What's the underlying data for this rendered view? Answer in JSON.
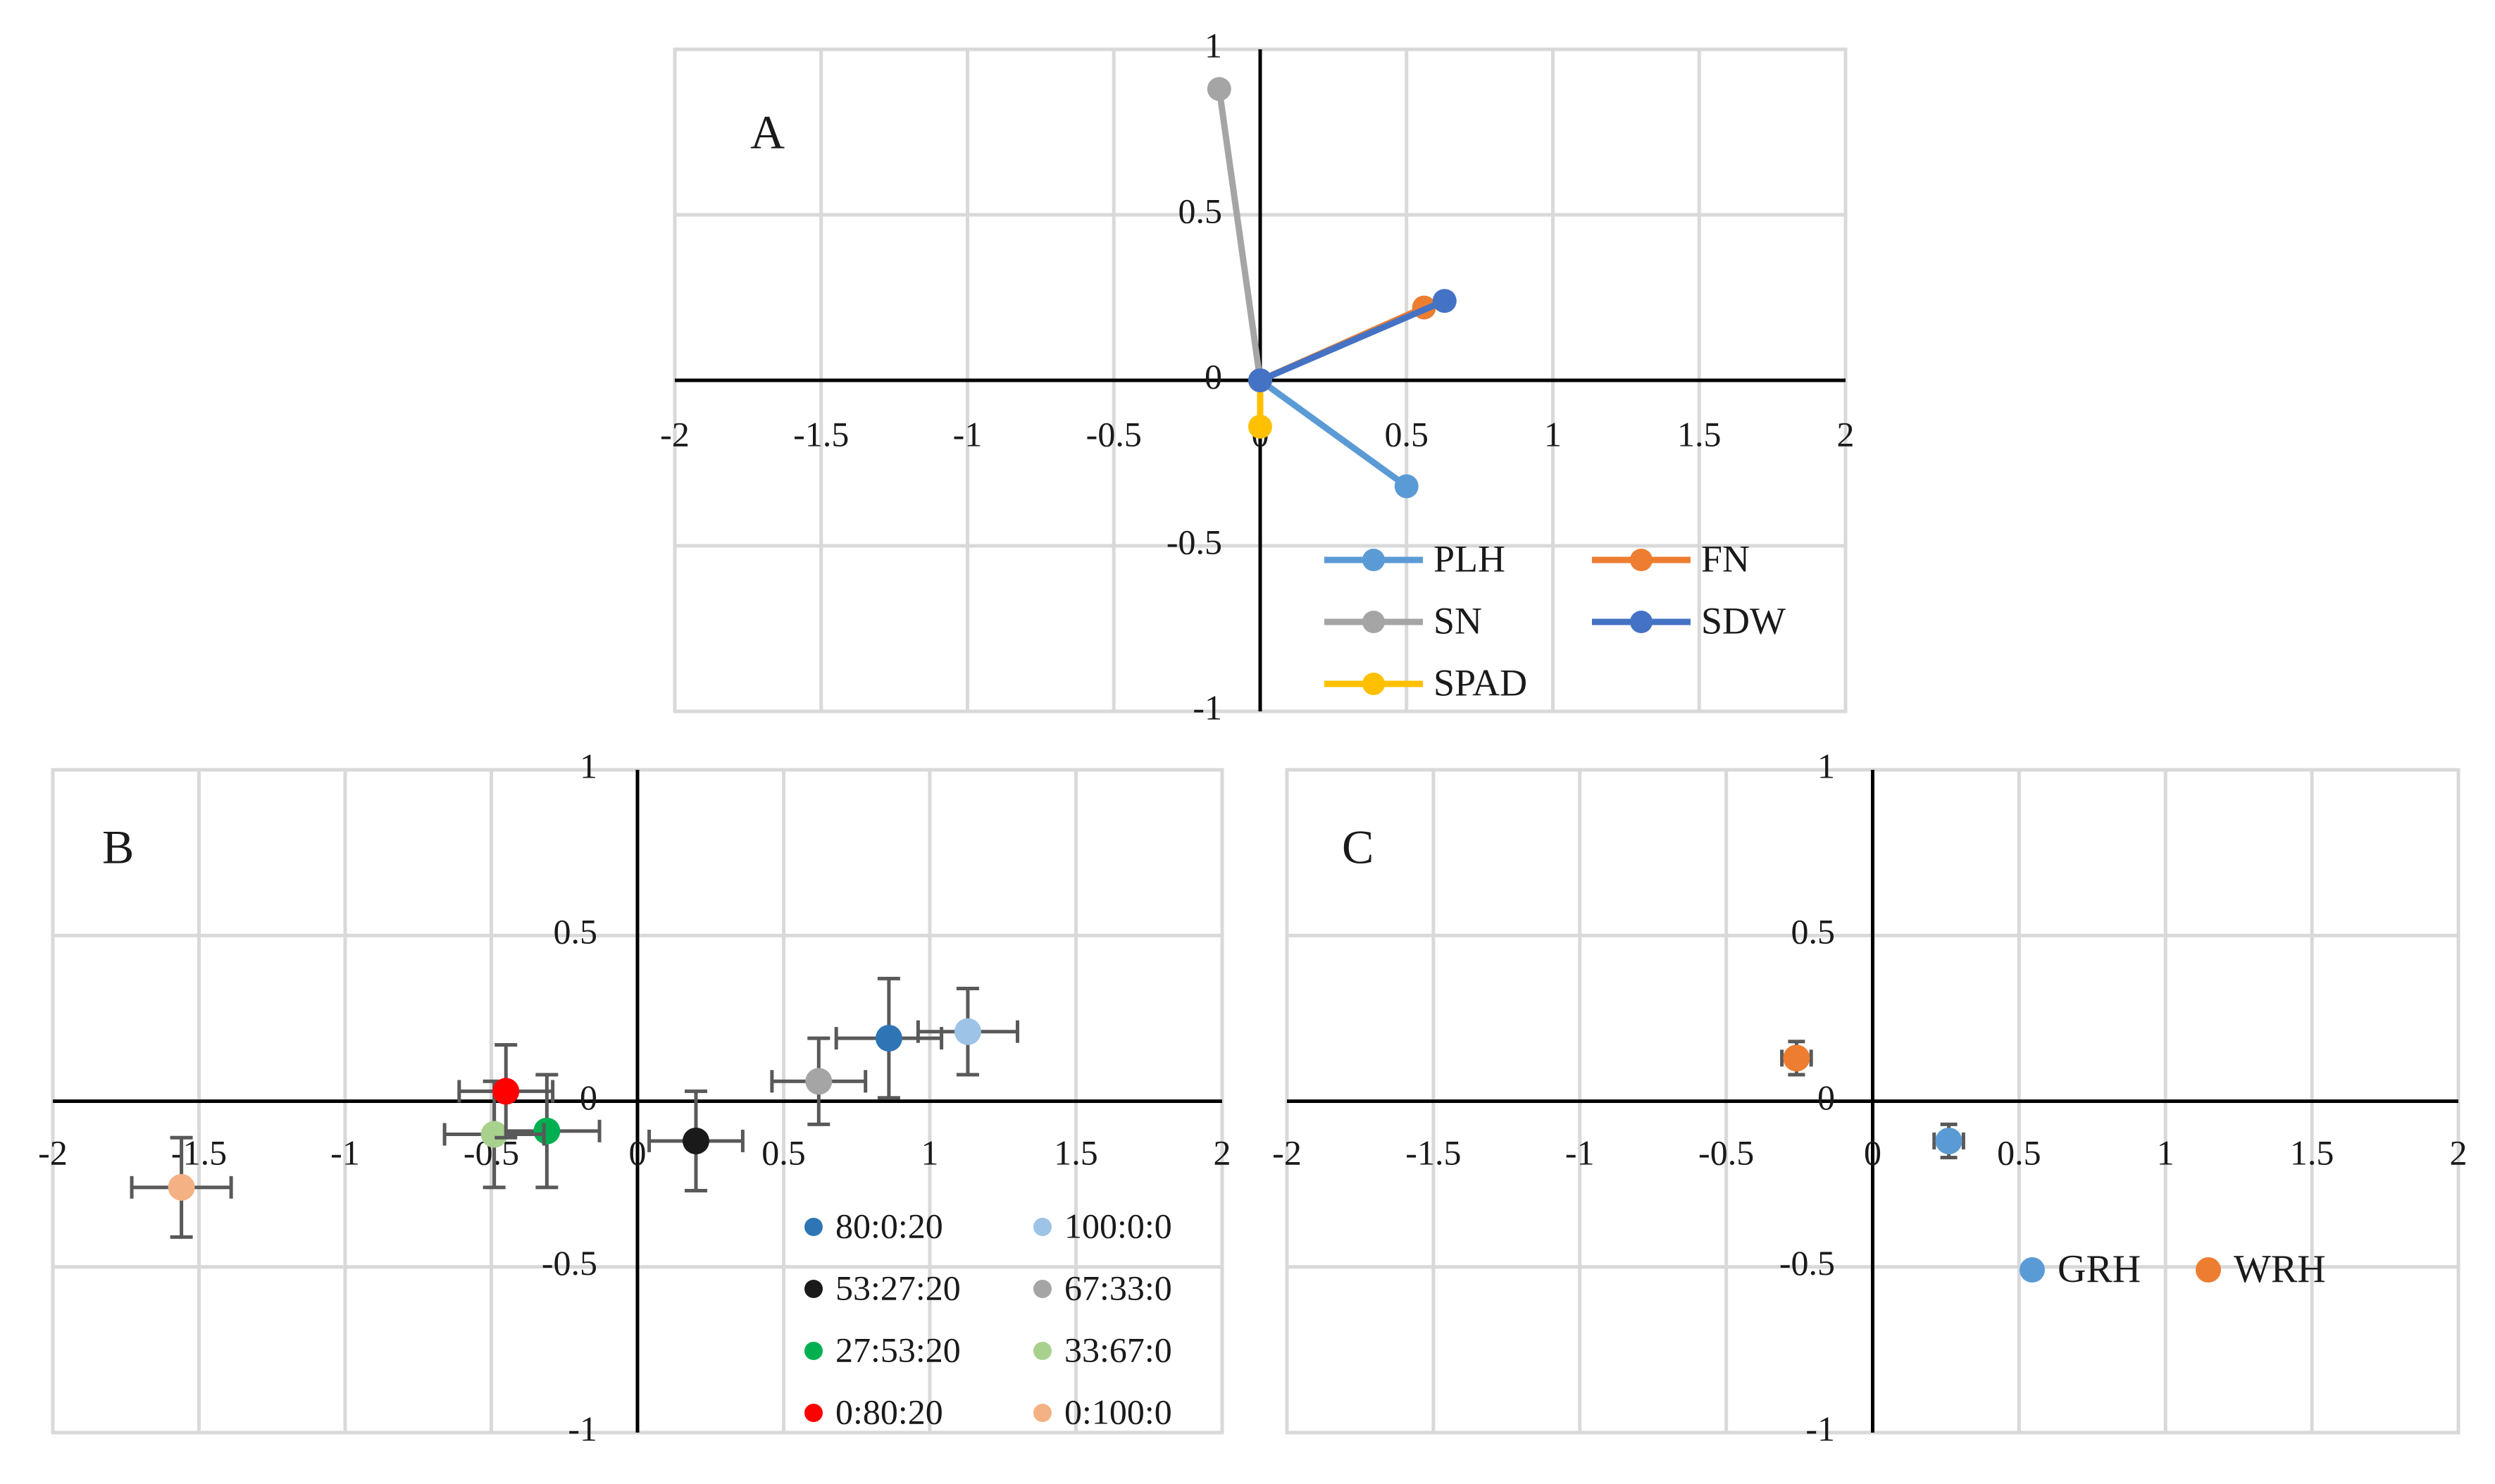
{
  "chart_data": [
    {
      "type": "line",
      "panel_label": "A",
      "xlim": [
        -2,
        2
      ],
      "ylim": [
        -1,
        1
      ],
      "x_ticks": [
        "-2",
        "-1.5",
        "-1",
        "-0.5",
        "0",
        "0.5",
        "1",
        "1.5",
        "2"
      ],
      "y_ticks": [
        "1",
        "0.5",
        "0",
        "-0.5",
        "-1"
      ],
      "grid": true,
      "legend_position": "bottom-right",
      "series": [
        {
          "name": "PLH",
          "color": "#5B9BD5",
          "points": [
            [
              0,
              0
            ],
            [
              0.5,
              -0.32
            ]
          ]
        },
        {
          "name": "FN",
          "color": "#ED7D31",
          "points": [
            [
              0,
              0
            ],
            [
              0.56,
              0.22
            ]
          ]
        },
        {
          "name": "SN",
          "color": "#A5A5A5",
          "points": [
            [
              0,
              0
            ],
            [
              -0.14,
              0.88
            ]
          ]
        },
        {
          "name": "SPAD",
          "color": "#FFC000",
          "points": [
            [
              0,
              0
            ],
            [
              0,
              -0.14
            ]
          ]
        },
        {
          "name": "SDW",
          "color": "#4472C4",
          "points": [
            [
              0,
              0
            ],
            [
              0.63,
              0.24
            ]
          ]
        }
      ]
    },
    {
      "type": "scatter",
      "panel_label": "B",
      "xlim": [
        -2,
        2
      ],
      "ylim": [
        -1,
        1
      ],
      "x_ticks": [
        "-2",
        "-1.5",
        "-1",
        "-0.5",
        "0",
        "0.5",
        "1",
        "1.5",
        "2"
      ],
      "y_ticks": [
        "1",
        "0.5",
        "0",
        "-0.5",
        "-1"
      ],
      "grid": true,
      "legend_position": "bottom-right",
      "series": [
        {
          "name": "80:0:20",
          "color": "#2E75B6",
          "x": 0.86,
          "y": 0.19,
          "xerr": 0.18,
          "yerr": 0.18
        },
        {
          "name": "100:0:0",
          "color": "#9DC3E6",
          "x": 1.13,
          "y": 0.21,
          "xerr": 0.17,
          "yerr": 0.13
        },
        {
          "name": "53:27:20",
          "color": "#1A1A1A",
          "x": 0.2,
          "y": -0.12,
          "xerr": 0.16,
          "yerr": 0.15
        },
        {
          "name": "67:33:0",
          "color": "#A5A5A5",
          "x": 0.62,
          "y": 0.06,
          "xerr": 0.16,
          "yerr": 0.13
        },
        {
          "name": "27:53:20",
          "color": "#00B050",
          "x": -0.31,
          "y": -0.09,
          "xerr": 0.18,
          "yerr": 0.17
        },
        {
          "name": "33:67:0",
          "color": "#A9D18E",
          "x": -0.49,
          "y": -0.1,
          "xerr": 0.17,
          "yerr": 0.16
        },
        {
          "name": "0:80:20",
          "color": "#FF0000",
          "x": -0.45,
          "y": 0.03,
          "xerr": 0.16,
          "yerr": 0.14
        },
        {
          "name": "0:100:0",
          "color": "#F4B183",
          "x": -1.56,
          "y": -0.26,
          "xerr": 0.17,
          "yerr": 0.15
        }
      ]
    },
    {
      "type": "scatter",
      "panel_label": "C",
      "xlim": [
        -2,
        2
      ],
      "ylim": [
        -1,
        1
      ],
      "x_ticks": [
        "-2",
        "-1.5",
        "-1",
        "-0.5",
        "0",
        "0.5",
        "1",
        "1.5",
        "2"
      ],
      "y_ticks": [
        "1",
        "0.5",
        "0",
        "-0.5",
        "-1"
      ],
      "grid": true,
      "legend_position": "bottom-right",
      "series": [
        {
          "name": "GRH",
          "color": "#5B9BD5",
          "x": 0.26,
          "y": -0.12,
          "xerr": 0.05,
          "yerr": 0.05
        },
        {
          "name": "WRH",
          "color": "#ED7D31",
          "x": -0.26,
          "y": 0.13,
          "xerr": 0.05,
          "yerr": 0.05
        }
      ]
    }
  ]
}
